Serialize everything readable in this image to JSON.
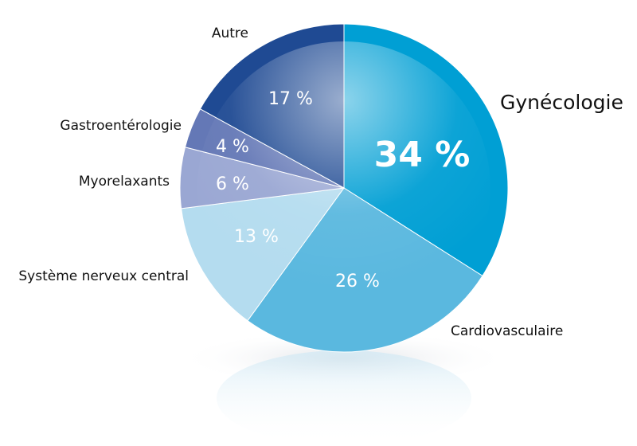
{
  "chart_data": {
    "type": "pie",
    "title": "",
    "slices": [
      {
        "label": "Gynécologie",
        "value": 34,
        "display": "34 %",
        "color": "#009fd4"
      },
      {
        "label": "Cardiovasculaire",
        "value": 26,
        "display": "26 %",
        "color": "#5ab8df"
      },
      {
        "label": "Système nerveux central",
        "value": 13,
        "display": "13 %",
        "color": "#b4dcef"
      },
      {
        "label": "Myorelaxants",
        "value": 6,
        "display": "6 %",
        "color": "#9aa7d3"
      },
      {
        "label": "Gastroentérologie",
        "value": 4,
        "display": "4 %",
        "color": "#6478b6"
      },
      {
        "label": "Autre",
        "value": 17,
        "display": "17 %",
        "color": "#1f4a93"
      }
    ],
    "start_angle": "12 o'clock",
    "direction": "clockwise",
    "legend": "none",
    "labels_outside": true
  }
}
